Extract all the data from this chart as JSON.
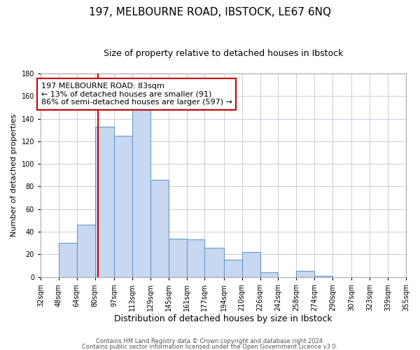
{
  "title": "197, MELBOURNE ROAD, IBSTOCK, LE67 6NQ",
  "subtitle": "Size of property relative to detached houses in Ibstock",
  "xlabel": "Distribution of detached houses by size in Ibstock",
  "ylabel": "Number of detached properties",
  "bar_color": "#c8d8f0",
  "bar_edge_color": "#6699cc",
  "bin_labels": [
    "32sqm",
    "48sqm",
    "64sqm",
    "80sqm",
    "97sqm",
    "113sqm",
    "129sqm",
    "145sqm",
    "161sqm",
    "177sqm",
    "194sqm",
    "210sqm",
    "226sqm",
    "242sqm",
    "258sqm",
    "274sqm",
    "290sqm",
    "307sqm",
    "323sqm",
    "339sqm",
    "355sqm"
  ],
  "bin_edges": [
    32,
    48,
    64,
    80,
    97,
    113,
    129,
    145,
    161,
    177,
    194,
    210,
    226,
    242,
    258,
    274,
    290,
    307,
    323,
    339,
    355
  ],
  "bar_heights": [
    0,
    30,
    46,
    133,
    125,
    148,
    86,
    34,
    33,
    26,
    15,
    22,
    4,
    0,
    5,
    1,
    0,
    0,
    0,
    0,
    0
  ],
  "vline_x": 83,
  "vline_color": "#cc0000",
  "ylim": [
    0,
    180
  ],
  "ann_line1": "197 MELBOURNE ROAD: 83sqm",
  "ann_line2": "← 13% of detached houses are smaller (91)",
  "ann_line3": "86% of semi-detached houses are larger (597) →",
  "annotation_box_color": "#ffffff",
  "annotation_box_edge": "#cc0000",
  "footer_line1": "Contains HM Land Registry data © Crown copyright and database right 2024.",
  "footer_line2": "Contains public sector information licensed under the Open Government Licence v3.0.",
  "title_fontsize": 11,
  "subtitle_fontsize": 9,
  "xlabel_fontsize": 9,
  "ylabel_fontsize": 8,
  "tick_fontsize": 7,
  "ann_fontsize": 8,
  "footer_fontsize": 6
}
